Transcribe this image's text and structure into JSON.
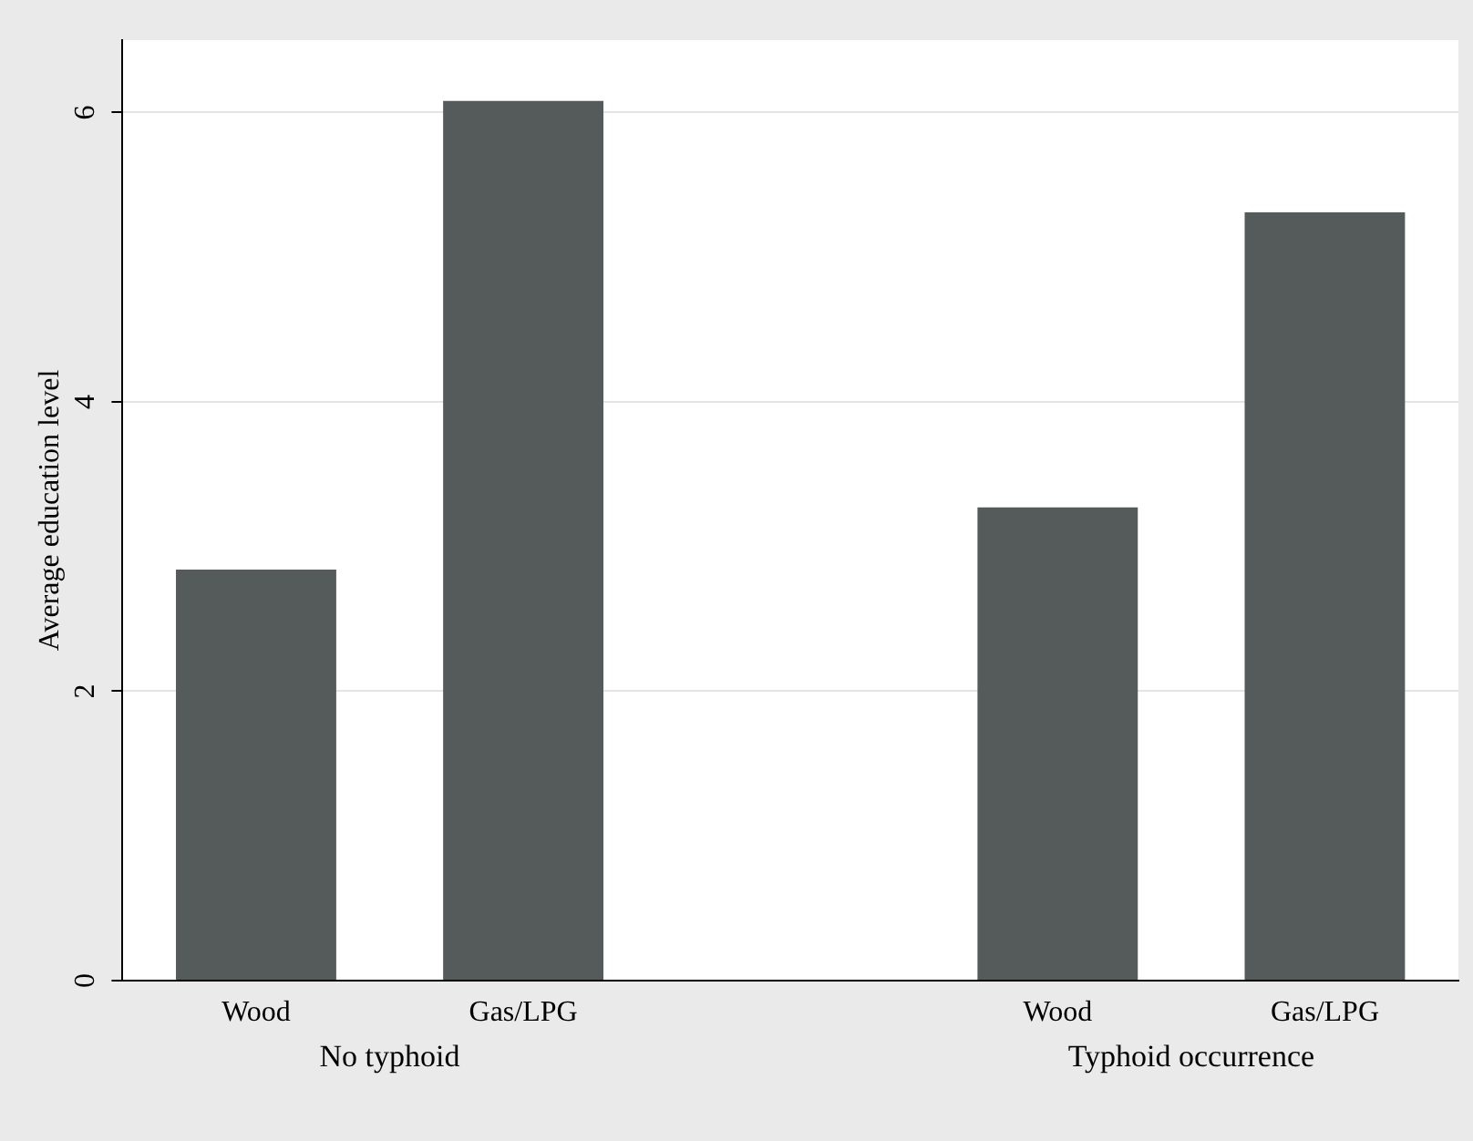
{
  "chart_data": {
    "type": "bar",
    "ylabel": "Average education level",
    "categories": [
      "Wood",
      "Gas/LPG",
      null,
      "Wood",
      "Gas/LPG"
    ],
    "values": [
      2.84,
      6.08,
      null,
      3.27,
      5.31
    ],
    "color": "#555a5a",
    "ylim": [
      0,
      6.5
    ],
    "yticks": [
      0,
      2,
      4,
      6
    ],
    "grid": "y",
    "legend": false,
    "annotations": [
      "No typhoid",
      "Typhoid occurrence"
    ]
  }
}
